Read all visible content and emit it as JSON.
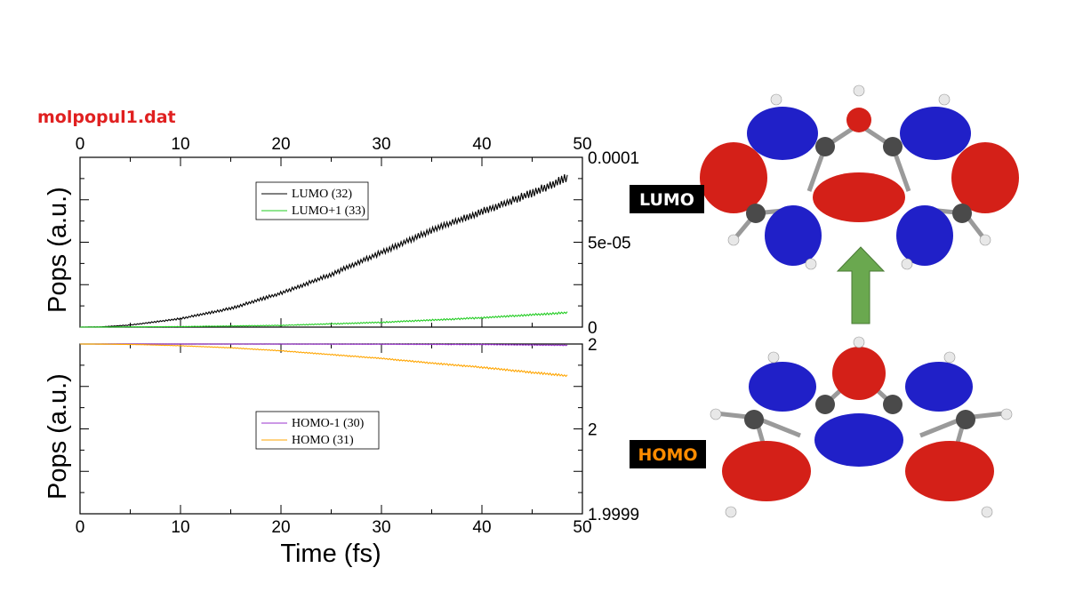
{
  "file_title": "molpopul1.dat",
  "mo_labels": {
    "lumo": "LUMO",
    "homo": "HOMO"
  },
  "colors": {
    "title": "#e02020",
    "lumo_series": "#000000",
    "lumo1_series": "#22cc22",
    "homo1_series": "#9933cc",
    "homo_series": "#ffa500",
    "lumo_label_bg": "#000000",
    "lumo_label_fg": "#ffffff",
    "homo_label_bg": "#000000",
    "homo_label_fg": "#ff8c00",
    "arrow": "#6aa84f",
    "lobe_positive": "#d42018",
    "lobe_negative": "#2020c8",
    "carbon": "#4a4a4a",
    "hydrogen": "#e8e8e8"
  },
  "chart_data": [
    {
      "type": "line",
      "panel": "top",
      "xlabel": "",
      "ylabel": "Pops (a.u.)",
      "xlim": [
        0,
        50
      ],
      "ylim": [
        0,
        0.0001
      ],
      "x_ticks": [
        "0",
        "10",
        "20",
        "30",
        "40",
        "50"
      ],
      "top_x_ticks": [
        "0",
        "10",
        "20",
        "30",
        "40",
        "50"
      ],
      "right_y_ticks": [
        {
          "value": 0.0001,
          "label": "0.0001"
        },
        {
          "value": 5e-05,
          "label": "5e-05"
        },
        {
          "value": 0,
          "label": "0"
        }
      ],
      "legend_position": "top-center",
      "series": [
        {
          "name": "LUMO (32)",
          "color_key": "lumo_series",
          "x": [
            0,
            2,
            5,
            10,
            15,
            20,
            25,
            30,
            35,
            40,
            45,
            48.5
          ],
          "y": [
            0,
            1e-07,
            1.2e-06,
            5e-06,
            1.1e-05,
            2e-05,
            3.1e-05,
            4.4e-05,
            5.7e-05,
            6.8e-05,
            7.9e-05,
            8.8e-05
          ],
          "noise": 2.5e-06
        },
        {
          "name": "LUMO+1 (33)",
          "color_key": "lumo1_series",
          "x": [
            0,
            10,
            20,
            30,
            40,
            48.5
          ],
          "y": [
            0,
            3e-07,
            1e-06,
            2.8e-06,
            5.5e-06,
            8.5e-06
          ],
          "noise": 6e-07
        }
      ]
    },
    {
      "type": "line",
      "panel": "bottom",
      "xlabel": "Time (fs)",
      "ylabel": "Pops (a.u.)",
      "xlim": [
        0,
        50
      ],
      "ylim": [
        1.9999,
        2.0001
      ],
      "x_ticks": [
        "0",
        "10",
        "20",
        "30",
        "40",
        "50"
      ],
      "right_y_ticks": [
        {
          "value": 2.0001,
          "label": "2"
        },
        {
          "value": 2.0,
          "label": "2"
        },
        {
          "value": 1.9999,
          "label": "1.9999"
        }
      ],
      "legend_position": "center",
      "series": [
        {
          "name": "HOMO-1 (30)",
          "color_key": "homo1_series",
          "x": [
            0,
            10,
            20,
            30,
            40,
            48.5
          ],
          "y": [
            2.0001,
            2.0001,
            2.00009995,
            2.00009975,
            2.0000994,
            2.0000985
          ],
          "noise": 5e-07
        },
        {
          "name": "HOMO (31)",
          "color_key": "homo_series",
          "x": [
            0,
            3,
            6,
            10,
            15,
            20,
            25,
            30,
            35,
            40,
            45,
            48.5
          ],
          "y": [
            2.0001,
            2.0000998,
            2.0000993,
            2.000098,
            2.0000955,
            2.000092,
            2.0000875,
            2.000083,
            2.0000775,
            2.0000725,
            2.0000665,
            2.0000625
          ],
          "noise": 1.2e-06
        }
      ]
    }
  ]
}
